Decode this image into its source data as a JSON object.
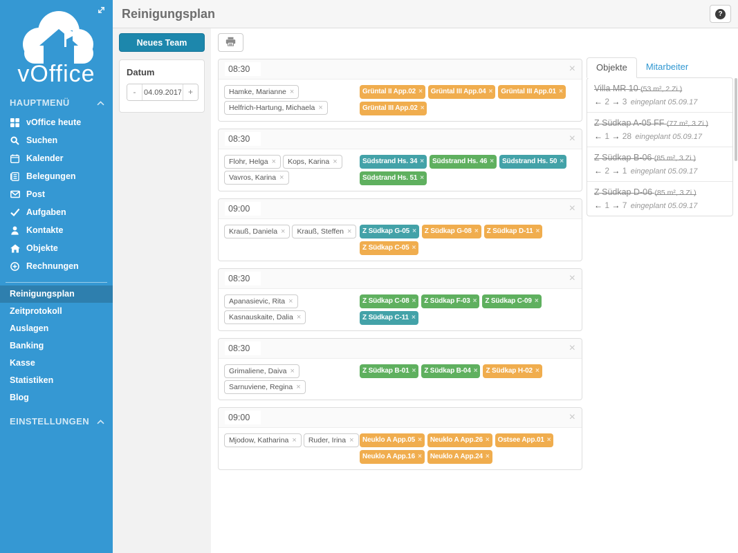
{
  "header": {
    "title": "Reinigungsplan",
    "help_icon": "question-circle-icon"
  },
  "sidebar": {
    "logo_text": "vOffice",
    "main_section_label": "HAUPTMENÜ",
    "settings_section_label": "EINSTELLUNGEN",
    "menu": [
      {
        "icon": "grid",
        "label": "vOffice heute"
      },
      {
        "icon": "search",
        "label": "Suchen"
      },
      {
        "icon": "calendar",
        "label": "Kalender"
      },
      {
        "icon": "journal",
        "label": "Belegungen"
      },
      {
        "icon": "envelope",
        "label": "Post"
      },
      {
        "icon": "check",
        "label": "Aufgaben"
      },
      {
        "icon": "person",
        "label": "Kontakte"
      },
      {
        "icon": "house",
        "label": "Objekte"
      },
      {
        "icon": "plus-circle",
        "label": "Rechnungen"
      }
    ],
    "submenu": [
      {
        "label": "Reinigungsplan",
        "active": true
      },
      {
        "label": "Zeitprotokoll",
        "active": false
      },
      {
        "label": "Auslagen",
        "active": false
      },
      {
        "label": "Banking",
        "active": false
      },
      {
        "label": "Kasse",
        "active": false
      },
      {
        "label": "Statistiken",
        "active": false
      },
      {
        "label": "Blog",
        "active": false
      }
    ]
  },
  "toolbar": {
    "new_team_label": "Neues Team",
    "datum_label": "Datum",
    "minus_label": "-",
    "plus_label": "+",
    "date_value": "04.09.2017",
    "print_icon": "printer-icon"
  },
  "teams": [
    {
      "time": "08:30",
      "members": [
        "Hamke, Marianne",
        "Helfrich-Hartung, Michaela"
      ],
      "tags": [
        {
          "label": "Grüntal II App.02",
          "color": "orange"
        },
        {
          "label": "Grüntal III App.04",
          "color": "orange"
        },
        {
          "label": "Grüntal III App.01",
          "color": "orange"
        },
        {
          "label": "Grüntal III App.02",
          "color": "orange"
        }
      ]
    },
    {
      "time": "08:30",
      "members": [
        "Flohr, Helga",
        "Kops, Karina",
        "Vavros, Karina"
      ],
      "tags": [
        {
          "label": "Südstrand Hs. 34",
          "color": "teal"
        },
        {
          "label": "Südstrand Hs. 46",
          "color": "green"
        },
        {
          "label": "Südstrand Hs. 50",
          "color": "teal"
        },
        {
          "label": "Südstrand Hs. 51",
          "color": "green"
        }
      ]
    },
    {
      "time": "09:00",
      "members": [
        "Krauß, Daniela",
        "Krauß, Steffen"
      ],
      "tags": [
        {
          "label": "Z Südkap G-05",
          "color": "teal"
        },
        {
          "label": "Z Südkap G-08",
          "color": "orange"
        },
        {
          "label": "Z Südkap D-11",
          "color": "orange"
        },
        {
          "label": "Z Südkap C-05",
          "color": "orange"
        }
      ]
    },
    {
      "time": "08:30",
      "members": [
        "Apanasievic, Rita",
        "Kasnauskaite, Dalia"
      ],
      "tags": [
        {
          "label": "Z Südkap C-08",
          "color": "green"
        },
        {
          "label": "Z Südkap F-03",
          "color": "green"
        },
        {
          "label": "Z Südkap C-09",
          "color": "green"
        },
        {
          "label": "Z Südkap C-11",
          "color": "teal"
        }
      ]
    },
    {
      "time": "08:30",
      "members": [
        "Grimaliene, Daiva",
        "Sarnuviene, Regina"
      ],
      "tags": [
        {
          "label": "Z Südkap B-01",
          "color": "green"
        },
        {
          "label": "Z Südkap B-04",
          "color": "green"
        },
        {
          "label": "Z Südkap H-02",
          "color": "orange"
        }
      ]
    },
    {
      "time": "09:00",
      "members": [
        "Mjodow, Katharina",
        "Ruder, Irina"
      ],
      "tags": [
        {
          "label": "Neuklo A App.05",
          "color": "orange"
        },
        {
          "label": "Neuklo A App.26",
          "color": "orange"
        },
        {
          "label": "Ostsee App.01",
          "color": "orange"
        },
        {
          "label": "Neuklo A App.16",
          "color": "orange"
        },
        {
          "label": "Neuklo A App.24",
          "color": "orange"
        }
      ]
    }
  ],
  "panel": {
    "tabs": [
      {
        "label": "Objekte",
        "active": true
      },
      {
        "label": "Mitarbeiter",
        "active": false
      }
    ],
    "objects": [
      {
        "title": "Villa MR 10",
        "meta": "(53 m², 2 Zi.)",
        "prev": "2",
        "next": "3",
        "note": "eingeplant 05.09.17"
      },
      {
        "title": "Z Südkap A-05 FF",
        "meta": "(77 m², 3 Zi.)",
        "prev": "1",
        "next": "28",
        "note": "eingeplant 05.09.17"
      },
      {
        "title": "Z Südkap B-06",
        "meta": "(85 m², 3 Zi.)",
        "prev": "2",
        "next": "1",
        "note": "eingeplant 05.09.17"
      },
      {
        "title": "Z Südkap D-06",
        "meta": "(85 m², 3 Zi.)",
        "prev": "1",
        "next": "7",
        "note": "eingeplant 05.09.17"
      }
    ]
  },
  "colors": {
    "sidebar_blue": "#3598d3",
    "sidebar_active": "#2e7fae",
    "accent_teal": "#1d87ac",
    "tag_orange": "#f0ad4e",
    "tag_green": "#5fb05f",
    "tag_teal": "#43a2a8",
    "tab_link_blue": "#3097d1"
  }
}
